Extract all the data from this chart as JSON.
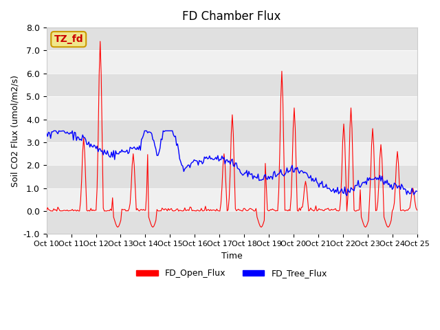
{
  "title": "FD Chamber Flux",
  "xlabel": "Time",
  "ylabel": "Soil CO2 Flux (umol/m2/s)",
  "ylim": [
    -1.0,
    8.0
  ],
  "yticks": [
    -1.0,
    0.0,
    1.0,
    2.0,
    3.0,
    4.0,
    5.0,
    6.0,
    7.0,
    8.0
  ],
  "xtick_labels": [
    "Oct 10",
    "Oct 11",
    "Oct 12",
    "Oct 13",
    "Oct 14",
    "Oct 15",
    "Oct 16",
    "Oct 17",
    "Oct 18",
    "Oct 19",
    "Oct 20",
    "Oct 21",
    "Oct 22",
    "Oct 23",
    "Oct 24",
    "Oct 25"
  ],
  "legend_labels": [
    "FD_Open_Flux",
    "FD_Tree_Flux"
  ],
  "annotation_text": "TZ_fd",
  "annotation_bg": "#f0e68c",
  "annotation_border": "#cc9900",
  "annotation_text_color": "#cc0000",
  "bg_color": "#e8e8e8",
  "band_colors": [
    "#e0e0e0",
    "#f0f0f0"
  ],
  "n_points": 360,
  "seed": 42
}
